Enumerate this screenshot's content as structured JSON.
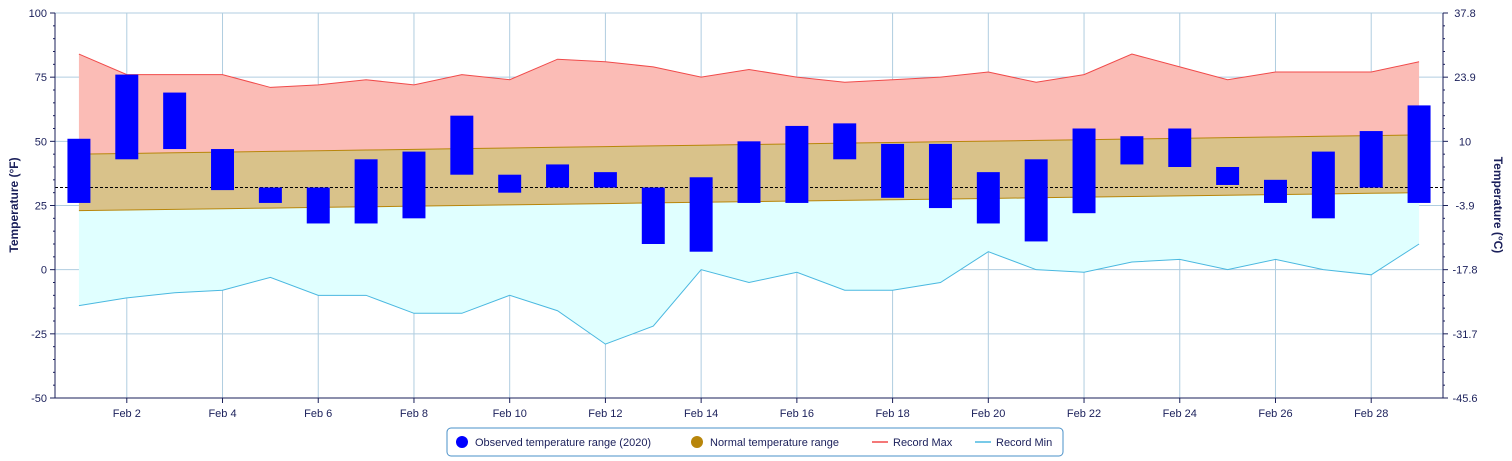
{
  "chart_data": {
    "type": "bar",
    "xlabel": "",
    "ylabel_left": "Temperature (°F)",
    "ylabel_right": "Temperature (°C)",
    "ylim": [
      -50,
      100
    ],
    "yticks_left": [
      100,
      75,
      50,
      25,
      0,
      -25,
      -50
    ],
    "yticks_right": [
      "37.8",
      "23.9",
      "10",
      "-3.9",
      "-17.8",
      "-31.7",
      "-45.6"
    ],
    "xlim_days": [
      0.5,
      29.5
    ],
    "xtick_days": [
      2,
      4,
      6,
      8,
      10,
      12,
      14,
      16,
      18,
      20,
      22,
      24,
      26,
      28
    ],
    "xtick_labels": [
      "Feb 2",
      "Feb 4",
      "Feb 6",
      "Feb 8",
      "Feb 10",
      "Feb 12",
      "Feb 14",
      "Feb 16",
      "Feb 18",
      "Feb 20",
      "Feb 22",
      "Feb 24",
      "Feb 26",
      "Feb 28"
    ],
    "days": [
      1,
      2,
      3,
      4,
      5,
      6,
      7,
      8,
      9,
      10,
      11,
      12,
      13,
      14,
      15,
      16,
      17,
      18,
      19,
      20,
      21,
      22,
      23,
      24,
      25,
      26,
      27,
      28,
      29
    ],
    "freezing_line": 32,
    "series": [
      {
        "name": "Observed temperature range (2020)",
        "color": "#0000ff",
        "low": [
          26,
          43,
          47,
          31,
          26,
          18,
          18,
          20,
          37,
          30,
          32,
          32,
          10,
          7,
          26,
          26,
          43,
          28,
          24,
          18,
          11,
          22,
          41,
          40,
          33,
          26,
          20,
          32,
          26
        ],
        "high": [
          51,
          76,
          69,
          47,
          32,
          32,
          43,
          46,
          60,
          37,
          41,
          38,
          32,
          36,
          50,
          56,
          57,
          49,
          49,
          38,
          43,
          55,
          52,
          55,
          40,
          35,
          46,
          54,
          64
        ]
      },
      {
        "name": "Normal temperature range",
        "color": "#b8860b",
        "fill": "#d9c28a",
        "low_start": 23,
        "low_end": 30,
        "high_start": 45,
        "high_end": 52.5
      },
      {
        "name": "Record Max",
        "color": "#f04a4a",
        "fill": "#fbbcb6",
        "values": [
          84,
          76,
          76,
          76,
          71,
          72,
          74,
          72,
          76,
          74,
          82,
          81,
          79,
          75,
          78,
          75,
          73,
          74,
          75,
          77,
          73,
          76,
          84,
          79,
          74,
          77,
          77,
          77,
          81
        ]
      },
      {
        "name": "Record Min",
        "color": "#4ab8e0",
        "fill": "#e0ffff",
        "values": [
          -14,
          -11,
          -9,
          -8,
          -3,
          -10,
          -10,
          -17,
          -17,
          -10,
          -16,
          -29,
          -22,
          0,
          -5,
          -1,
          -8,
          -8,
          -5,
          7,
          0,
          -1,
          3,
          4,
          0,
          4,
          0,
          -2,
          10
        ]
      }
    ]
  },
  "legend": {
    "observed": "Observed temperature range (2020)",
    "normal": "Normal temperature range",
    "record_max": "Record Max",
    "record_min": "Record Min"
  },
  "colors": {
    "axis_text": "#1a1f5a",
    "grid": "#b0cde0",
    "legend_border": "#4a90c8"
  }
}
